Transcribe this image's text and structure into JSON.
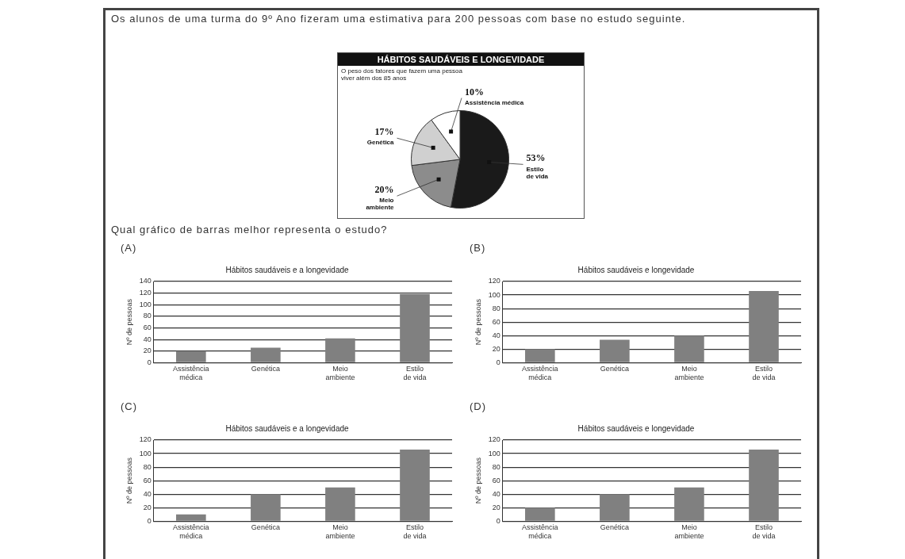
{
  "chart_data": [
    {
      "type": "pie",
      "title": "HÁBITOS SAUDÁVEIS E LONGEVIDADE",
      "subtitle": "O peso dos fatores que fazem uma pessoa viver além dos 85 anos",
      "categories": [
        "Estilo de vida",
        "Meio ambiente",
        "Genética",
        "Assistência médica"
      ],
      "values": [
        53,
        20,
        17,
        10
      ],
      "value_labels": [
        "53%",
        "20%",
        "17%",
        "10%"
      ],
      "colors": [
        "#1a1a1a",
        "#8c8c8c",
        "#d0d0d0",
        "#ffffff"
      ],
      "legend": false,
      "annotations": [
        "Os alunos de uma turma do 9º Ano fizeram uma estimativa para 200 pessoas com base no estudo seguinte.",
        "Qual gráfico de barras melhor representa o estudo?"
      ]
    },
    {
      "type": "bar",
      "title": "Hábitos saudáveis e a longevidade",
      "ylabel": "Nº de pessoas",
      "categories": [
        "Assistência médica",
        "Genética",
        "Meio ambiente",
        "Estilo de vida"
      ],
      "values": [
        20,
        26,
        42,
        118
      ],
      "color": "#808080",
      "ylim": [
        0,
        140
      ],
      "yticks": [
        0,
        20,
        40,
        60,
        80,
        100,
        120,
        140
      ],
      "grid": "y",
      "legend": false,
      "annotations": [
        "(A)"
      ]
    },
    {
      "type": "bar",
      "title": "Hábitos saudáveis e longevidade",
      "ylabel": "Nº de pessoas",
      "categories": [
        "Assistência médica",
        "Genética",
        "Meio ambiente",
        "Estilo de vida"
      ],
      "values": [
        20,
        34,
        40,
        106
      ],
      "color": "#808080",
      "ylim": [
        0,
        120
      ],
      "yticks": [
        0,
        20,
        40,
        60,
        80,
        100,
        120
      ],
      "grid": "y",
      "legend": false,
      "annotations": [
        "(B)"
      ]
    },
    {
      "type": "bar",
      "title": "Hábitos saudáveis e a longevidade",
      "ylabel": "Nº de pessoas",
      "categories": [
        "Assistência médica",
        "Genética",
        "Meio ambiente",
        "Estilo de vida"
      ],
      "values": [
        10,
        40,
        50,
        106
      ],
      "color": "#808080",
      "ylim": [
        0,
        120
      ],
      "yticks": [
        0,
        20,
        40,
        60,
        80,
        100,
        120
      ],
      "grid": "y",
      "legend": false,
      "annotations": [
        "(C)"
      ]
    },
    {
      "type": "bar",
      "title": "Hábitos saudáveis e longevidade",
      "ylabel": "Nº de pessoas",
      "categories": [
        "Assistência médica",
        "Genética",
        "Meio ambiente",
        "Estilo de vida"
      ],
      "values": [
        20,
        40,
        50,
        106
      ],
      "color": "#808080",
      "ylim": [
        0,
        120
      ],
      "yticks": [
        0,
        20,
        40,
        60,
        80,
        100,
        120
      ],
      "grid": "y",
      "legend": false,
      "annotations": [
        "(D)"
      ]
    }
  ]
}
